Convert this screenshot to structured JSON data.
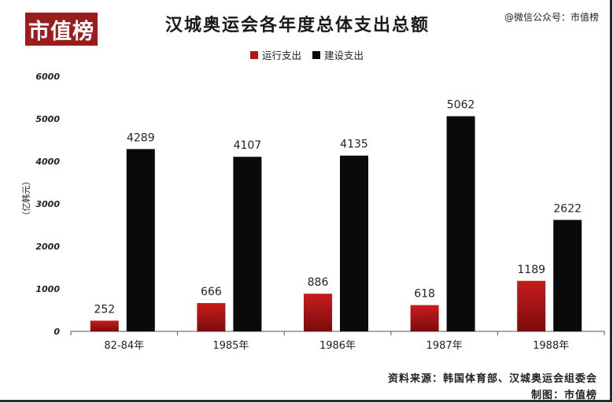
{
  "logo_text": "市值榜",
  "title": "汉城奥运会各年度总体支出总额",
  "wechat": "@微信公众号：市值榜",
  "source": "资料来源：韩国体育部、汉城奥运会组委会",
  "maker": "制图：市值榜",
  "colors": {
    "operating": "#b01818",
    "construction": "#0a0a0a",
    "brand": "#9b1c1c"
  },
  "chart_data": {
    "type": "bar",
    "title": "汉城奥运会各年度总体支出总额",
    "ylabel": "（亿韩元）",
    "xlabel": "",
    "categories": [
      "82-84年",
      "1985年",
      "1986年",
      "1987年",
      "1988年"
    ],
    "series": [
      {
        "name": "运行支出",
        "values": [
          252,
          666,
          886,
          618,
          1189
        ]
      },
      {
        "name": "建设支出",
        "values": [
          4289,
          4107,
          4135,
          5062,
          2622
        ]
      }
    ],
    "ylim": [
      0,
      6000
    ],
    "yticks": [
      "0",
      "1000",
      "2000",
      "3000",
      "4000",
      "5000",
      "6000"
    ],
    "grid": false,
    "legend_position": "top-center"
  }
}
